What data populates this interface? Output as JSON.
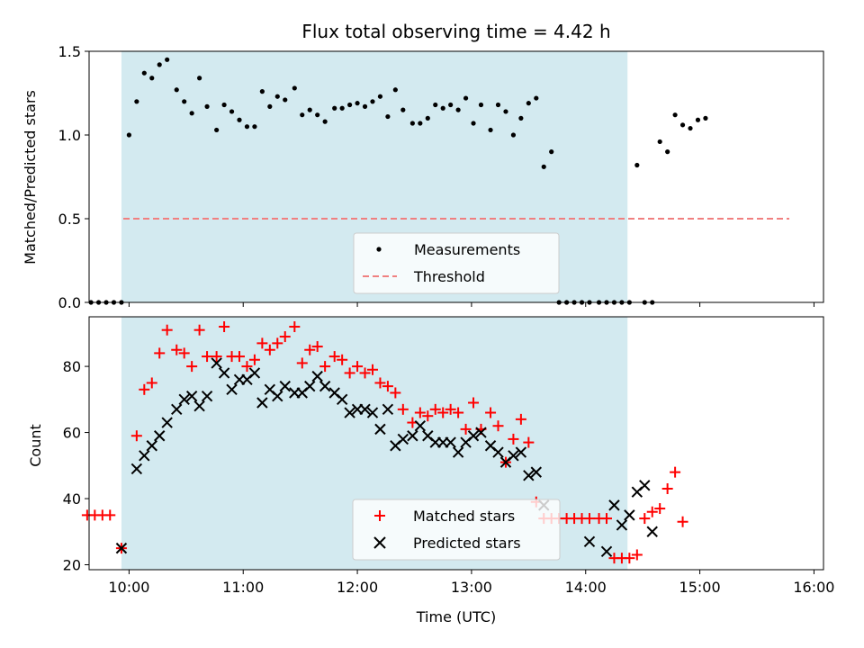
{
  "chart_data": [
    {
      "type": "scatter",
      "title": "Flux total observing time = 4.42 h",
      "xlabel": "",
      "ylabel": "Matched/Predicted stars",
      "ylim": [
        0,
        1.5
      ],
      "yticks": [
        "0.0",
        "0.5",
        "1.0",
        "1.5"
      ],
      "xlim": [
        "09:39",
        "16:05"
      ],
      "xticks": [
        "10:00",
        "11:00",
        "12:00",
        "13:00",
        "14:00",
        "15:00",
        "16:00"
      ],
      "shaded_interval": [
        "09:56",
        "14:22"
      ],
      "shaded_color": "#d3eaf0",
      "legend_position": "bottom-center",
      "series": [
        {
          "name": "Measurements",
          "marker": "dot",
          "color": "#000000",
          "points": [
            [
              "09:48",
              0
            ],
            [
              "09:52",
              0
            ],
            [
              "09:56",
              0
            ],
            [
              "10:00",
              1.0
            ],
            [
              "10:04",
              1.2
            ],
            [
              "10:08",
              1.37
            ],
            [
              "10:12",
              1.34
            ],
            [
              "10:16",
              1.42
            ],
            [
              "10:20",
              1.45
            ],
            [
              "10:25",
              1.27
            ],
            [
              "10:29",
              1.2
            ],
            [
              "10:33",
              1.13
            ],
            [
              "10:37",
              1.34
            ],
            [
              "10:41",
              1.17
            ],
            [
              "10:46",
              1.03
            ],
            [
              "10:50",
              1.18
            ],
            [
              "10:54",
              1.14
            ],
            [
              "10:58",
              1.09
            ],
            [
              "11:02",
              1.05
            ],
            [
              "11:06",
              1.05
            ],
            [
              "11:10",
              1.26
            ],
            [
              "11:14",
              1.17
            ],
            [
              "11:18",
              1.23
            ],
            [
              "11:22",
              1.21
            ],
            [
              "11:27",
              1.28
            ],
            [
              "11:31",
              1.12
            ],
            [
              "11:35",
              1.15
            ],
            [
              "11:39",
              1.12
            ],
            [
              "11:43",
              1.08
            ],
            [
              "11:48",
              1.16
            ],
            [
              "11:52",
              1.16
            ],
            [
              "11:56",
              1.18
            ],
            [
              "12:00",
              1.19
            ],
            [
              "12:04",
              1.17
            ],
            [
              "12:08",
              1.2
            ],
            [
              "12:12",
              1.23
            ],
            [
              "12:16",
              1.11
            ],
            [
              "12:20",
              1.27
            ],
            [
              "12:24",
              1.15
            ],
            [
              "12:29",
              1.07
            ],
            [
              "12:33",
              1.07
            ],
            [
              "12:37",
              1.1
            ],
            [
              "12:41",
              1.18
            ],
            [
              "12:45",
              1.16
            ],
            [
              "12:49",
              1.18
            ],
            [
              "12:53",
              1.15
            ],
            [
              "12:57",
              1.22
            ],
            [
              "13:01",
              1.07
            ],
            [
              "13:05",
              1.18
            ],
            [
              "13:10",
              1.03
            ],
            [
              "13:14",
              1.18
            ],
            [
              "13:18",
              1.14
            ],
            [
              "13:22",
              1.0
            ],
            [
              "13:26",
              1.1
            ],
            [
              "13:30",
              1.19
            ],
            [
              "13:34",
              1.22
            ],
            [
              "13:38",
              0.81
            ],
            [
              "13:42",
              0.9
            ],
            [
              "13:46",
              0
            ],
            [
              "13:50",
              0
            ],
            [
              "13:54",
              0
            ],
            [
              "13:58",
              0
            ],
            [
              "14:02",
              0
            ],
            [
              "14:07",
              0
            ],
            [
              "14:11",
              0
            ],
            [
              "14:15",
              0
            ],
            [
              "14:19",
              0
            ],
            [
              "14:23",
              0
            ],
            [
              "14:27",
              0.82
            ],
            [
              "14:31",
              0
            ],
            [
              "14:35",
              0
            ],
            [
              "14:39",
              0.96
            ],
            [
              "14:43",
              0.9
            ],
            [
              "14:47",
              1.12
            ],
            [
              "14:51",
              1.06
            ],
            [
              "14:55",
              1.04
            ],
            [
              "14:59",
              1.09
            ],
            [
              "15:03",
              1.1
            ],
            [
              "09:44",
              0
            ],
            [
              "09:40",
              0
            ]
          ]
        },
        {
          "name": "Threshold",
          "style": "dashed",
          "color": "#f08080",
          "points": [
            [
              "09:39",
              0.5
            ],
            [
              "16:05",
              0.5
            ]
          ]
        }
      ]
    },
    {
      "type": "scatter",
      "xlabel": "Time (UTC)",
      "ylabel": "Count",
      "ylim": [
        18.5,
        95
      ],
      "yticks": [
        "20",
        "40",
        "60",
        "80"
      ],
      "xlim": [
        "09:39",
        "16:05"
      ],
      "xticks": [
        "10:00",
        "11:00",
        "12:00",
        "13:00",
        "14:00",
        "15:00",
        "16:00"
      ],
      "shaded_interval": [
        "09:56",
        "14:22"
      ],
      "shaded_color": "#d3eaf0",
      "legend_position": "bottom-center",
      "series": [
        {
          "name": "Matched stars",
          "marker": "plus",
          "color": "#ff0000",
          "points": [
            [
              "09:38",
              35
            ],
            [
              "09:42",
              35
            ],
            [
              "09:46",
              35
            ],
            [
              "09:50",
              35
            ],
            [
              "09:56",
              25
            ],
            [
              "10:04",
              59
            ],
            [
              "10:08",
              73
            ],
            [
              "10:12",
              75
            ],
            [
              "10:16",
              84
            ],
            [
              "10:20",
              91
            ],
            [
              "10:25",
              85
            ],
            [
              "10:29",
              84
            ],
            [
              "10:33",
              80
            ],
            [
              "10:37",
              91
            ],
            [
              "10:41",
              83
            ],
            [
              "10:46",
              83
            ],
            [
              "10:50",
              92
            ],
            [
              "10:54",
              83
            ],
            [
              "10:58",
              83
            ],
            [
              "11:02",
              80
            ],
            [
              "11:06",
              82
            ],
            [
              "11:10",
              87
            ],
            [
              "11:14",
              85
            ],
            [
              "11:18",
              87
            ],
            [
              "11:22",
              89
            ],
            [
              "11:27",
              92
            ],
            [
              "11:31",
              81
            ],
            [
              "11:35",
              85
            ],
            [
              "11:39",
              86
            ],
            [
              "11:43",
              80
            ],
            [
              "11:48",
              83
            ],
            [
              "11:52",
              82
            ],
            [
              "11:56",
              78
            ],
            [
              "12:00",
              80
            ],
            [
              "12:04",
              78
            ],
            [
              "12:08",
              79
            ],
            [
              "12:12",
              75
            ],
            [
              "12:16",
              74
            ],
            [
              "12:20",
              72
            ],
            [
              "12:24",
              67
            ],
            [
              "12:29",
              63
            ],
            [
              "12:33",
              66
            ],
            [
              "12:37",
              65
            ],
            [
              "12:41",
              67
            ],
            [
              "12:45",
              66
            ],
            [
              "12:49",
              67
            ],
            [
              "12:53",
              66
            ],
            [
              "12:57",
              61
            ],
            [
              "13:01",
              69
            ],
            [
              "13:05",
              61
            ],
            [
              "13:10",
              66
            ],
            [
              "13:14",
              62
            ],
            [
              "13:18",
              51
            ],
            [
              "13:22",
              58
            ],
            [
              "13:26",
              64
            ],
            [
              "13:30",
              57
            ],
            [
              "13:34",
              39
            ],
            [
              "13:38",
              34
            ],
            [
              "13:42",
              34
            ],
            [
              "13:46",
              34
            ],
            [
              "13:50",
              34
            ],
            [
              "13:54",
              34
            ],
            [
              "13:58",
              34
            ],
            [
              "14:02",
              34
            ],
            [
              "14:07",
              34
            ],
            [
              "14:11",
              34
            ],
            [
              "14:15",
              22
            ],
            [
              "14:19",
              22
            ],
            [
              "14:23",
              22
            ],
            [
              "14:27",
              23
            ],
            [
              "14:31",
              34
            ],
            [
              "14:35",
              36
            ],
            [
              "14:39",
              37
            ],
            [
              "14:43",
              43
            ],
            [
              "14:47",
              48
            ],
            [
              "14:51",
              33
            ]
          ]
        },
        {
          "name": "Predicted stars",
          "marker": "x",
          "color": "#000000",
          "points": [
            [
              "09:56",
              25
            ],
            [
              "10:04",
              49
            ],
            [
              "10:08",
              53
            ],
            [
              "10:12",
              56
            ],
            [
              "10:16",
              59
            ],
            [
              "10:20",
              63
            ],
            [
              "10:25",
              67
            ],
            [
              "10:29",
              70
            ],
            [
              "10:33",
              71
            ],
            [
              "10:37",
              68
            ],
            [
              "10:41",
              71
            ],
            [
              "10:46",
              81
            ],
            [
              "10:50",
              78
            ],
            [
              "10:54",
              73
            ],
            [
              "10:58",
              76
            ],
            [
              "11:02",
              76
            ],
            [
              "11:06",
              78
            ],
            [
              "11:10",
              69
            ],
            [
              "11:14",
              73
            ],
            [
              "11:18",
              71
            ],
            [
              "11:22",
              74
            ],
            [
              "11:27",
              72
            ],
            [
              "11:31",
              72
            ],
            [
              "11:35",
              74
            ],
            [
              "11:39",
              77
            ],
            [
              "11:43",
              74
            ],
            [
              "11:48",
              72
            ],
            [
              "11:52",
              70
            ],
            [
              "11:56",
              66
            ],
            [
              "12:00",
              67
            ],
            [
              "12:04",
              67
            ],
            [
              "12:08",
              66
            ],
            [
              "12:12",
              61
            ],
            [
              "12:16",
              67
            ],
            [
              "12:20",
              56
            ],
            [
              "12:24",
              58
            ],
            [
              "12:29",
              59
            ],
            [
              "12:33",
              62
            ],
            [
              "12:37",
              59
            ],
            [
              "12:41",
              57
            ],
            [
              "12:45",
              57
            ],
            [
              "12:49",
              57
            ],
            [
              "12:53",
              54
            ],
            [
              "12:57",
              57
            ],
            [
              "13:01",
              59
            ],
            [
              "13:05",
              60
            ],
            [
              "13:10",
              56
            ],
            [
              "13:14",
              54
            ],
            [
              "13:18",
              51
            ],
            [
              "13:22",
              53
            ],
            [
              "13:26",
              54
            ],
            [
              "13:30",
              47
            ],
            [
              "13:34",
              48
            ],
            [
              "13:38",
              38
            ],
            [
              "14:02",
              27
            ],
            [
              "14:11",
              24
            ],
            [
              "14:15",
              38
            ],
            [
              "14:19",
              32
            ],
            [
              "14:23",
              35
            ],
            [
              "14:27",
              42
            ],
            [
              "14:31",
              44
            ],
            [
              "14:35",
              30
            ]
          ]
        }
      ]
    }
  ]
}
